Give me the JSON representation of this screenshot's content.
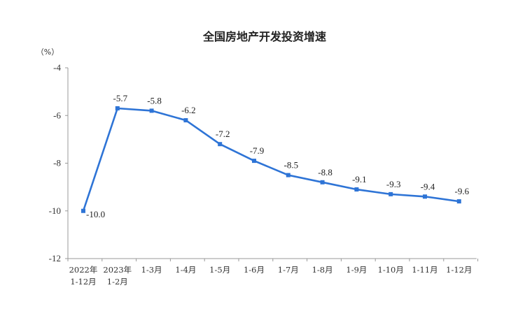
{
  "chart_data": {
    "type": "line",
    "title": "全国房地产开发投资增速",
    "ylabel": "（%）",
    "xlabel": "",
    "ylim": [
      -12,
      -4
    ],
    "yticks": [
      -4,
      -6,
      -8,
      -10,
      -12
    ],
    "grid": false,
    "categories": [
      [
        "2022年",
        "1-12月"
      ],
      [
        "2023年",
        "1-2月"
      ],
      [
        "1-3月"
      ],
      [
        "1-4月"
      ],
      [
        "1-5月"
      ],
      [
        "1-6月"
      ],
      [
        "1-7月"
      ],
      [
        "1-8月"
      ],
      [
        "1-9月"
      ],
      [
        "1-10月"
      ],
      [
        "1-11月"
      ],
      [
        "1-12月"
      ]
    ],
    "series": [
      {
        "values": [
          -10.0,
          -5.7,
          -5.8,
          -6.2,
          -7.2,
          -7.9,
          -8.5,
          -8.8,
          -9.1,
          -9.3,
          -9.4,
          -9.6
        ],
        "labels": [
          "-10.0",
          "-5.7",
          "-5.8",
          "-6.2",
          "-7.2",
          "-7.9",
          "-8.5",
          "-8.8",
          "-9.1",
          "-9.3",
          "-9.4",
          "-9.6"
        ],
        "color": "#2e74d6"
      }
    ]
  }
}
